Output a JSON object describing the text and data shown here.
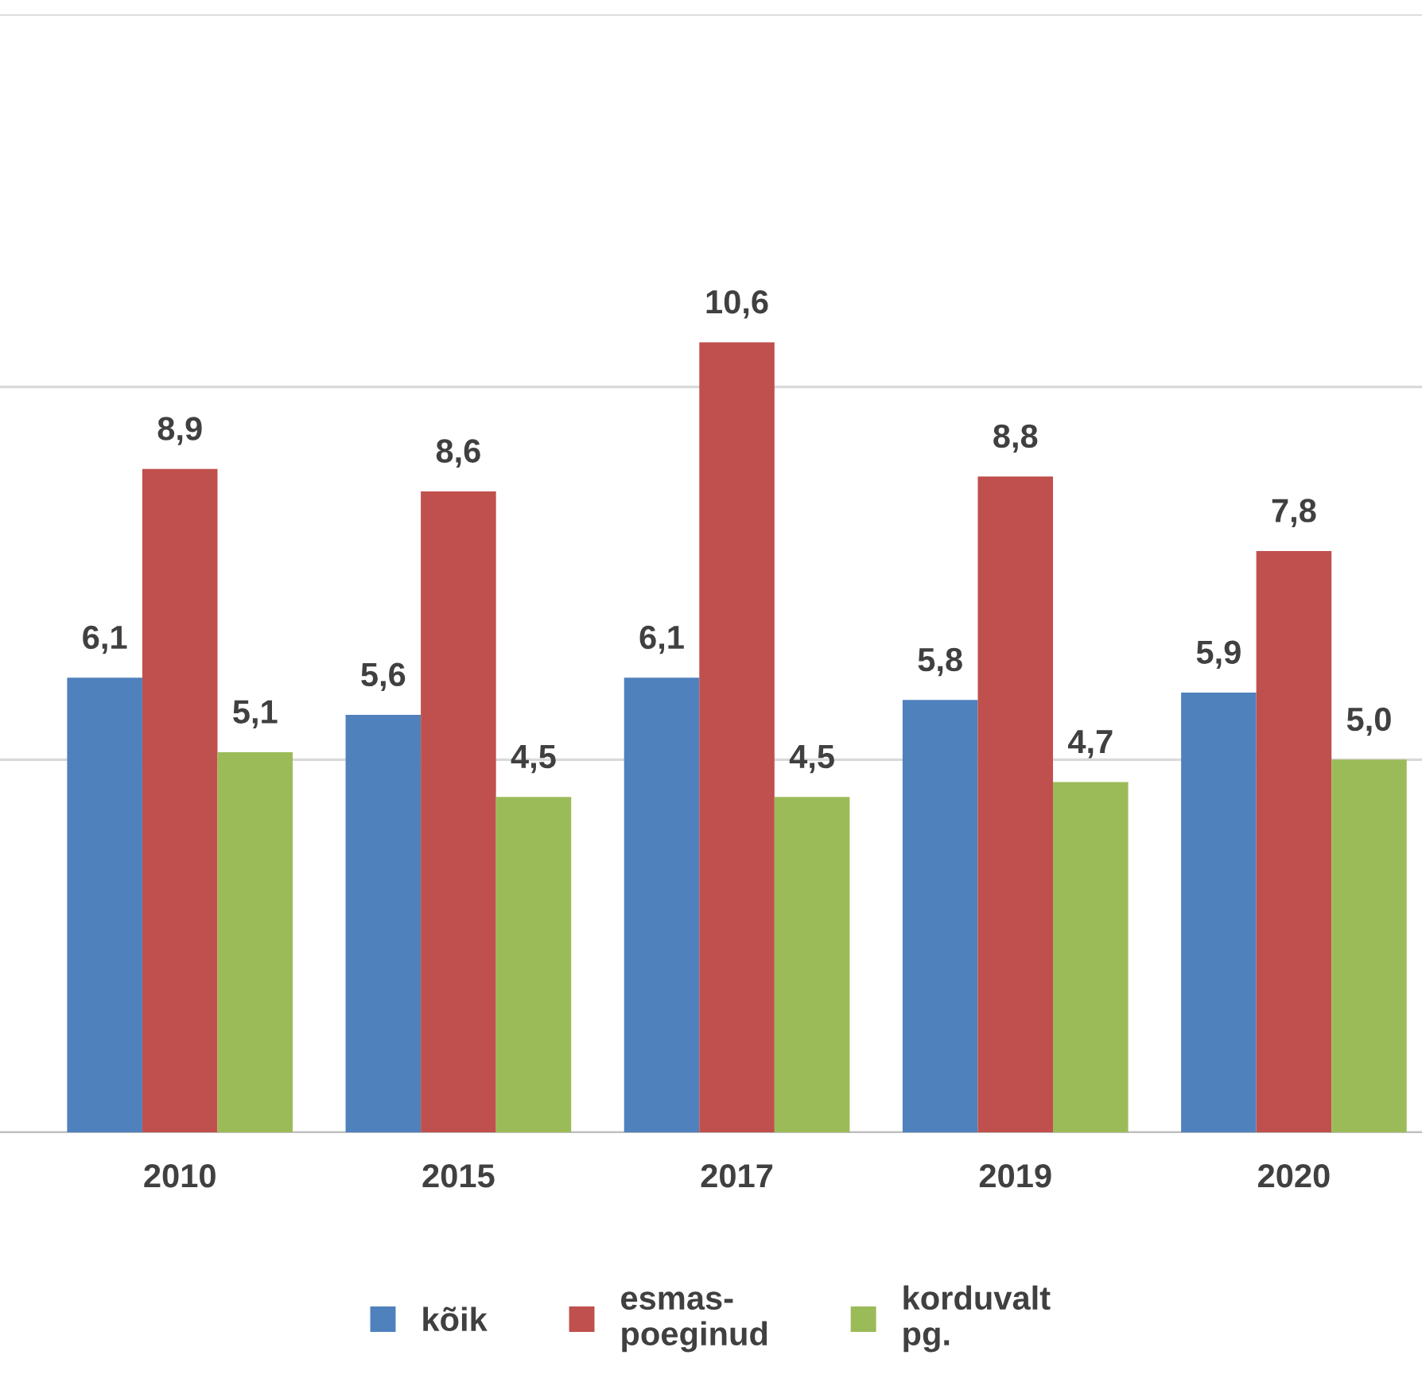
{
  "chart_data": {
    "type": "bar",
    "categories": [
      "2010",
      "2015",
      "2017",
      "2019",
      "2020"
    ],
    "series": [
      {
        "name": "kõik",
        "color": "#4f81bd",
        "values": [
          6.1,
          5.6,
          6.1,
          5.8,
          5.9
        ],
        "value_labels": [
          "6,1",
          "5,6",
          "6,1",
          "5,8",
          "5,9"
        ]
      },
      {
        "name": "esmas-\npoeginud",
        "color": "#c0504d",
        "values": [
          8.9,
          8.6,
          10.6,
          8.8,
          7.8
        ],
        "value_labels": [
          "8,9",
          "8,6",
          "10,6",
          "8,8",
          "7,8"
        ]
      },
      {
        "name": "korduvalt\npg.",
        "color": "#9bbb59",
        "values": [
          5.1,
          4.5,
          4.5,
          4.7,
          5.0
        ],
        "value_labels": [
          "5,1",
          "4,5",
          "4,5",
          "4,7",
          "5,0"
        ]
      }
    ],
    "ylim": [
      0,
      15
    ],
    "yticks": [
      {
        "value": 0,
        "label": null
      },
      {
        "value": 5,
        "label": null
      },
      {
        "value": 10,
        "label": null
      },
      {
        "value": 15,
        "label": null
      }
    ],
    "grid": "y",
    "tick_labels": "x",
    "legend": "bottom"
  }
}
